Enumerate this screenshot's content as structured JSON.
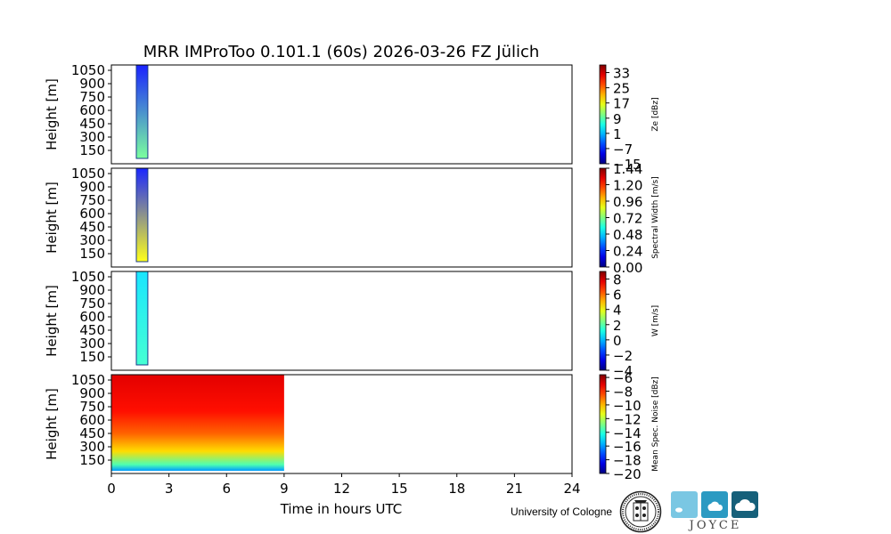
{
  "chart_data": {
    "type": "heatmap",
    "title": "MRR IMProToo 0.101.1 (60s) 2026-03-26 FZ Jülich",
    "xlabel": "Time in hours UTC",
    "xlim": [
      0,
      24
    ],
    "xticks": [
      0,
      3,
      6,
      9,
      12,
      15,
      18,
      21,
      24
    ],
    "ylabel": "Height [m]",
    "ylim": [
      0,
      1110
    ],
    "yticks": [
      150,
      300,
      450,
      600,
      750,
      900,
      1050
    ],
    "colormap": "jet",
    "panels": [
      {
        "id": "ze",
        "colorbar_label": "Ze [dBz]",
        "colorbar_range": [
          -15,
          37
        ],
        "colorbar_ticks": [
          "33",
          "25",
          "17",
          "9",
          "1",
          "−7",
          "−15"
        ],
        "tick_values": [
          33,
          25,
          17,
          9,
          1,
          -7,
          -15
        ],
        "event": {
          "t_start": 1.3,
          "t_end": 1.9,
          "h_min": 60,
          "h_max": 1110,
          "value_low": 10,
          "value_high": -8
        }
      },
      {
        "id": "width",
        "colorbar_label": "Spectral Width [m/s]",
        "colorbar_range": [
          0,
          1.44
        ],
        "colorbar_ticks": [
          "1.44",
          "1.20",
          "0.96",
          "0.72",
          "0.48",
          "0.24",
          "0.00"
        ],
        "tick_values": [
          1.44,
          1.2,
          0.96,
          0.72,
          0.48,
          0.24,
          0
        ],
        "event": {
          "t_start": 1.3,
          "t_end": 1.9,
          "h_min": 60,
          "h_max": 1110,
          "value_low": 0.9,
          "value_high": 0.2
        }
      },
      {
        "id": "w",
        "colorbar_label": "W [m/s]",
        "colorbar_range": [
          -4,
          9
        ],
        "colorbar_ticks": [
          "8",
          "6",
          "4",
          "2",
          "0",
          "−2",
          "−4"
        ],
        "tick_values": [
          8,
          6,
          4,
          2,
          0,
          -2,
          -4
        ],
        "event": {
          "t_start": 1.3,
          "t_end": 1.9,
          "h_min": 60,
          "h_max": 1110,
          "value_low": 1.5,
          "value_high": 0.5
        }
      },
      {
        "id": "noise",
        "colorbar_label": "Mean Spec. Noise [dBz]",
        "colorbar_range": [
          -20,
          -5.6
        ],
        "colorbar_ticks": [
          "−6",
          "−8",
          "−10",
          "−12",
          "−14",
          "−16",
          "−18",
          "−20"
        ],
        "tick_values": [
          -6,
          -8,
          -10,
          -12,
          -14,
          -16,
          -18,
          -20
        ],
        "data_extent": {
          "t_start": 0,
          "t_end": 9,
          "h_min": 30,
          "h_max": 1110
        },
        "profile": [
          {
            "h": 30,
            "v": -16
          },
          {
            "h": 100,
            "v": -13.5
          },
          {
            "h": 250,
            "v": -10.5
          },
          {
            "h": 450,
            "v": -8.8
          },
          {
            "h": 700,
            "v": -7.6
          },
          {
            "h": 1110,
            "v": -7.0
          }
        ]
      }
    ]
  },
  "footer": {
    "university": "University of Cologne",
    "project": "JOYCE",
    "seal_icon": "university-seal-icon",
    "joyce_colors": [
      "#7ac7e3",
      "#2b9ac2",
      "#16607a"
    ]
  }
}
